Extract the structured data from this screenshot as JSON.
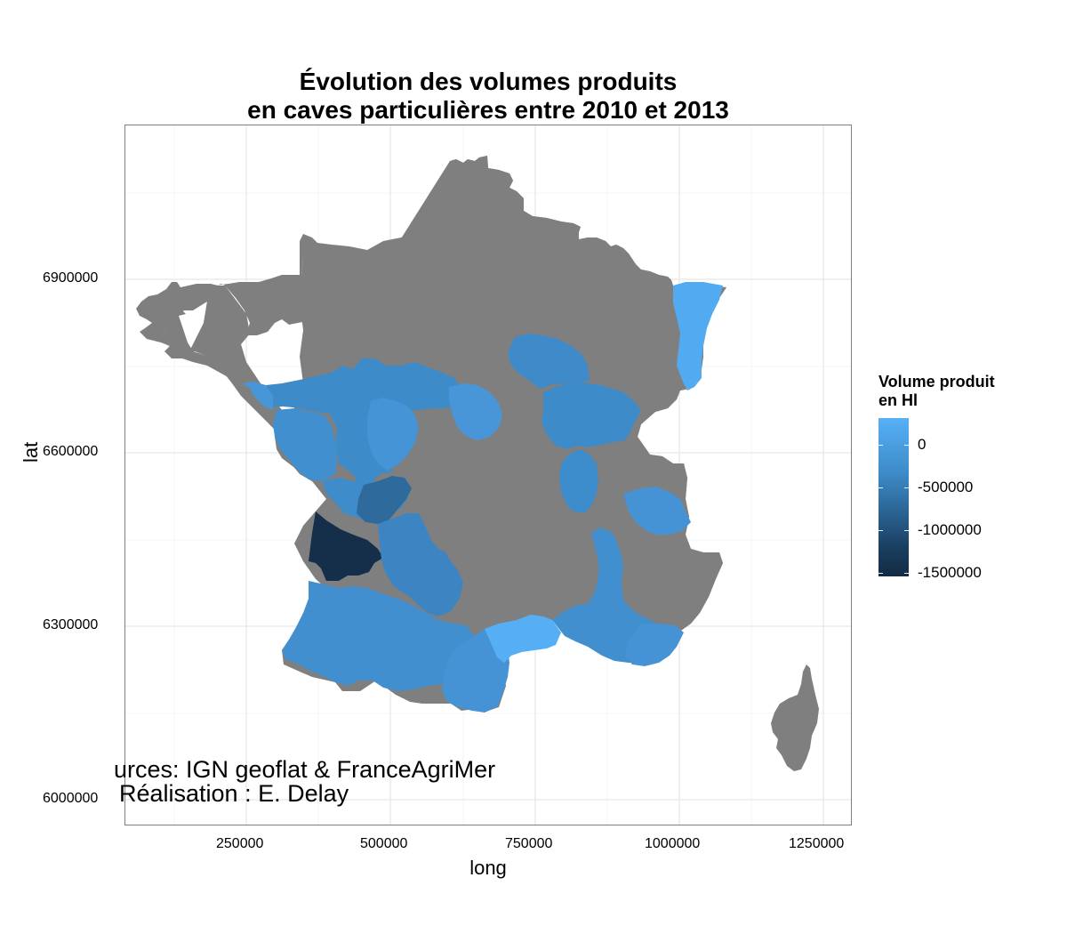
{
  "title": {
    "line1": "Évolution des volumes produits",
    "line2": "en caves particulières entre 2010 et 2013"
  },
  "axes": {
    "x_title": "long",
    "y_title": "lat",
    "x_ticks": [
      "250000",
      "500000",
      "750000",
      "1000000",
      "1250000"
    ],
    "y_ticks": [
      "6900000",
      "6600000",
      "6300000",
      "6000000"
    ]
  },
  "legend": {
    "title_line1": "Volume produit",
    "title_line2": "en Hl",
    "labels": [
      "0",
      "-500000",
      "-1000000",
      "-1500000"
    ],
    "color_high": "#56B1F7",
    "color_low": "#132B43",
    "na_color": "#7f7f7f"
  },
  "caption": {
    "line1": "urces: IGN geoflat & FranceAgriMer",
    "line2": "Réalisation : E. Delay"
  },
  "chart_data": {
    "type": "choropleth",
    "region": "France (départements)",
    "xlabel": "long",
    "ylabel": "lat",
    "xlim": [
      50000,
      1310000
    ],
    "ylim": [
      5960000,
      7210000
    ],
    "fill_scale": {
      "min": -1500000,
      "max": 400000,
      "low": "#132B43",
      "high": "#56B1F7"
    },
    "legend_position": "right"
  }
}
